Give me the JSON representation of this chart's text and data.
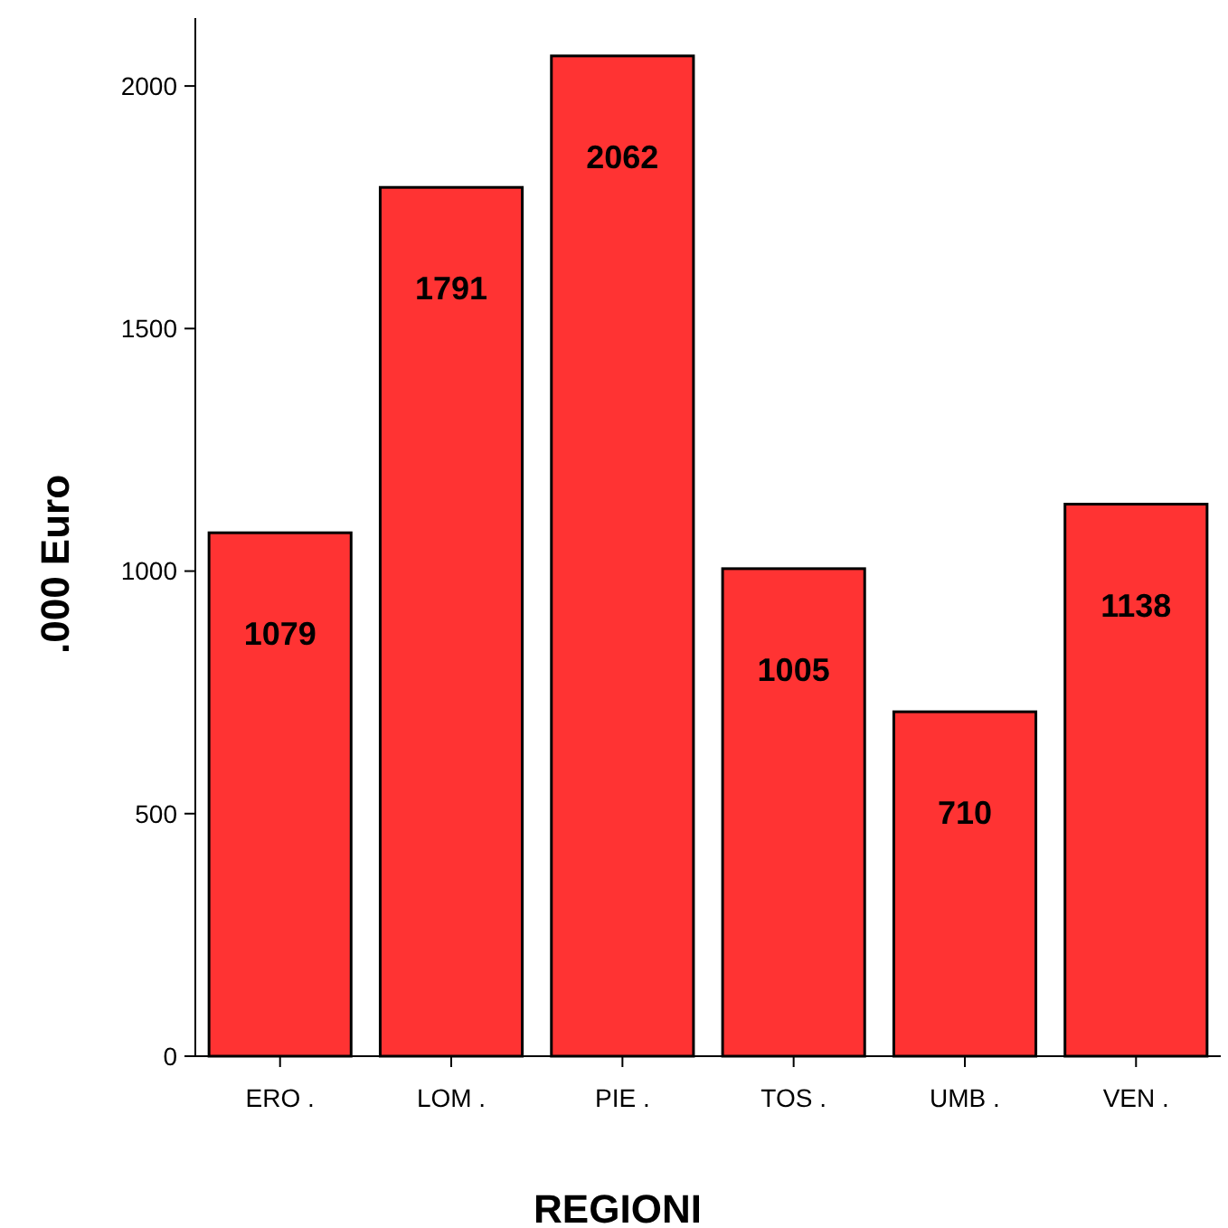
{
  "chart_data": {
    "type": "bar",
    "xlabel": "REGIONI",
    "ylabel": ".000 Euro",
    "categories": [
      "ERO .",
      "LOM .",
      "PIE .",
      "TOS .",
      "UMB .",
      "VEN ."
    ],
    "values": [
      1079,
      1791,
      2062,
      1005,
      710,
      1138
    ],
    "color": "#ff3333",
    "ylim": [
      0,
      2140
    ],
    "yticks": [
      0,
      500,
      1000,
      1500,
      2000
    ],
    "grid": false,
    "data_labels": true
  }
}
